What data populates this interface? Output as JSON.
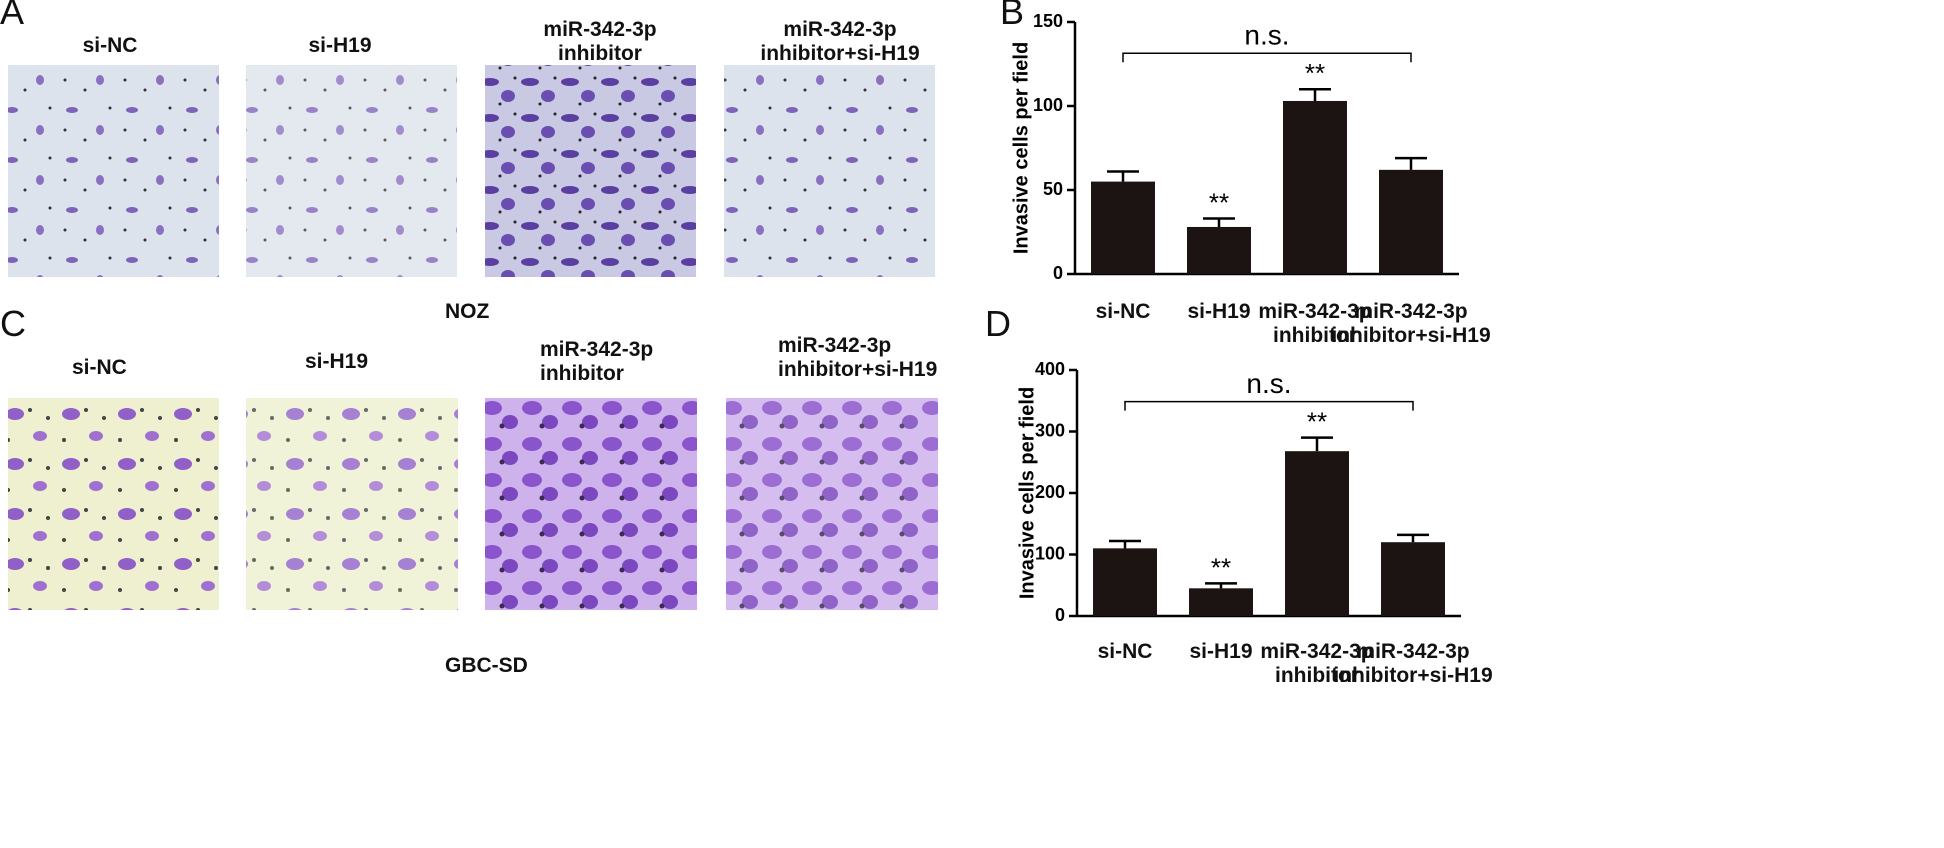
{
  "figure": {
    "panel_labels": [
      "A",
      "B",
      "C",
      "D"
    ],
    "micrograph_rows": [
      {
        "cell_line": "NOZ",
        "labels": [
          "si-NC",
          "si-H19",
          "miR-342-3p\ninhibitor",
          "miR-342-3p\ninhibitor+si-H19"
        ]
      },
      {
        "cell_line": "GBC-SD",
        "labels": [
          "si-NC",
          "si-H19",
          "miR-342-3p\ninhibitor",
          "miR-342-3p\ninhibitor+si-H19"
        ]
      }
    ]
  },
  "chart_data": [
    {
      "type": "bar",
      "ylabel": "Invasive cells per field",
      "categories": [
        "si-NC",
        "si-H19",
        "miR-342-3p\ninhibitor",
        "miR-342-3p\ninhibitor+si-H19"
      ],
      "values": [
        55,
        28,
        103,
        62
      ],
      "errors": [
        6,
        5,
        7,
        7
      ],
      "significance": [
        null,
        "**",
        "**",
        null
      ],
      "bracket_label": "n.s.",
      "color": "#1c1412",
      "ylim": [
        0,
        150
      ],
      "yticks": [
        0,
        50,
        100,
        150
      ]
    },
    {
      "type": "bar",
      "ylabel": "Invasive cells per field",
      "categories": [
        "si-NC",
        "si-H19",
        "miR-342-3p\ninhibitor",
        "miR-342-3p\ninhibitor+si-H19"
      ],
      "values": [
        110,
        45,
        268,
        120
      ],
      "errors": [
        12,
        8,
        22,
        12
      ],
      "significance": [
        null,
        "**",
        "**",
        null
      ],
      "bracket_label": "n.s.",
      "color": "#1c1412",
      "ylim": [
        0,
        400
      ],
      "yticks": [
        0,
        100,
        200,
        300,
        400
      ]
    }
  ]
}
